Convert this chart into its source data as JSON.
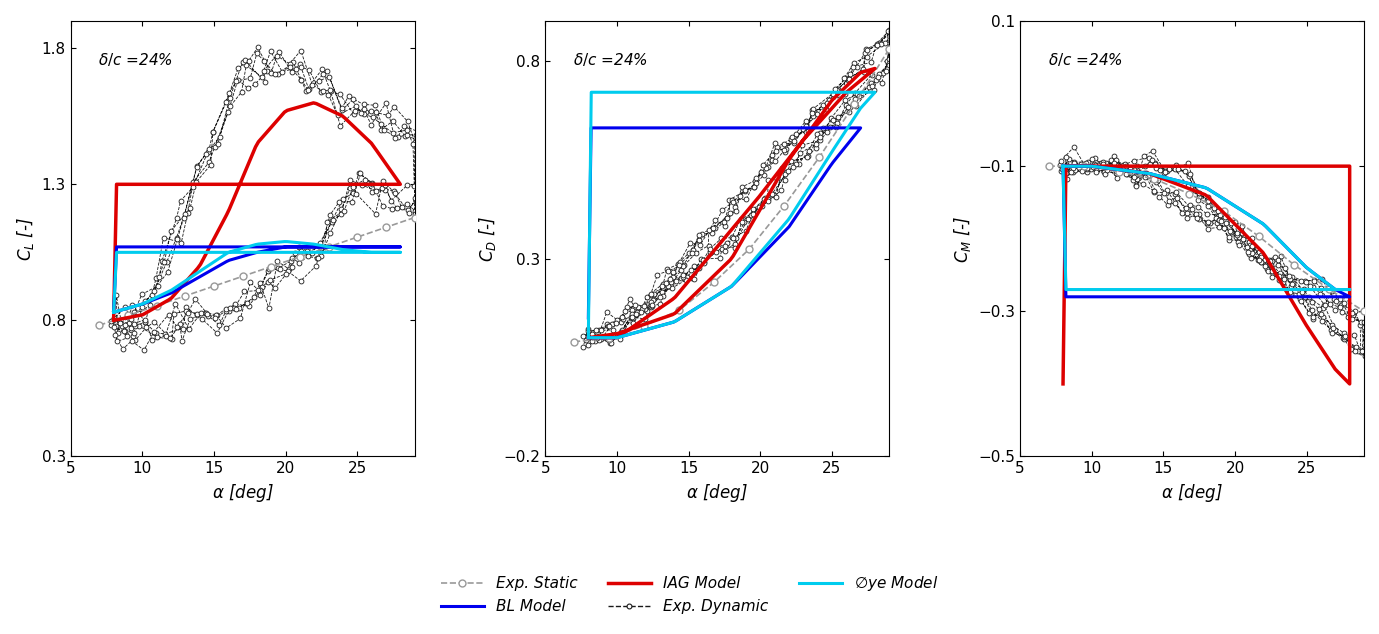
{
  "annotation": "δ/c =24%",
  "xlabel": "α [deg]",
  "xlim": [
    5,
    29
  ],
  "ylim_CL": [
    0.3,
    1.9
  ],
  "ylim_CD": [
    -0.2,
    0.9
  ],
  "ylim_CM": [
    -0.5,
    0.1
  ],
  "yticks_CL": [
    0.3,
    0.8,
    1.3,
    1.8
  ],
  "yticks_CD": [
    -0.2,
    0.3,
    0.8
  ],
  "yticks_CM": [
    -0.5,
    -0.3,
    -0.1,
    0.1
  ],
  "xticks": [
    5,
    10,
    15,
    20,
    25
  ],
  "colors": {
    "exp_static": "#999999",
    "exp_dynamic": "#1a1a1a",
    "bl_model": "#0000ee",
    "oye_model": "#00ccee",
    "iag_model": "#dd0000"
  }
}
